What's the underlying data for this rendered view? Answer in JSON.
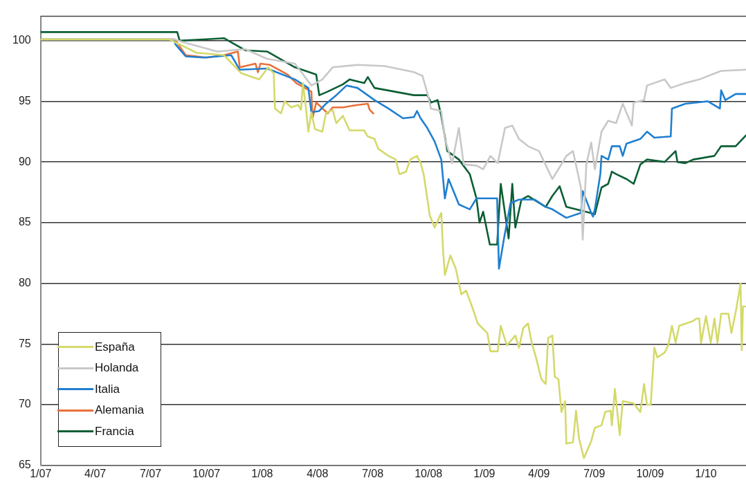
{
  "chart_data": {
    "type": "line",
    "marker": "none",
    "line_style": "solid",
    "grid": "y",
    "legend": "bottom left",
    "xlim": [
      "2007-01-01",
      "2010-03-08"
    ],
    "xticks": [
      {
        "value": "2007-01",
        "label": "1/07"
      },
      {
        "value": "2007-04",
        "label": "4/07"
      },
      {
        "value": "2007-07",
        "label": "7/07"
      },
      {
        "value": "2007-10",
        "label": "10/07"
      },
      {
        "value": "2008-01",
        "label": "1/08"
      },
      {
        "value": "2008-04",
        "label": "4/08"
      },
      {
        "value": "2008-07",
        "label": "7/08"
      },
      {
        "value": "2008-10",
        "label": "10/08"
      },
      {
        "value": "2009-01",
        "label": "1/09"
      },
      {
        "value": "2009-04",
        "label": "4/09"
      },
      {
        "value": "2009-07",
        "label": "7/09"
      },
      {
        "value": "2009-10",
        "label": "10/09"
      },
      {
        "value": "2010-01",
        "label": "1/10"
      }
    ],
    "ylim": [
      65,
      102
    ],
    "yticks": [
      65,
      70,
      75,
      80,
      85,
      90,
      95,
      100
    ],
    "series": [
      {
        "name": "España",
        "color": "#d4d96a",
        "x": [
          "2007-01-01",
          "2007-08-01",
          "2007-09-15",
          "2007-10-30",
          "2007-11-22",
          "2007-11-28",
          "2007-12-27",
          "2008-01-11",
          "2008-01-20",
          "2008-01-22",
          "2008-02-01",
          "2008-02-07",
          "2008-02-18",
          "2008-02-29",
          "2008-03-05",
          "2008-03-08",
          "2008-03-13",
          "2008-03-17",
          "2008-03-22",
          "2008-03-28",
          "2008-04-09",
          "2008-04-15",
          "2008-04-26",
          "2008-05-02",
          "2008-05-13",
          "2008-05-24",
          "2008-06-17",
          "2008-06-23",
          "2008-07-04",
          "2008-07-10",
          "2008-07-27",
          "2008-08-08",
          "2008-08-14",
          "2008-08-25",
          "2008-09-01",
          "2008-09-12",
          "2008-09-18",
          "2008-09-23",
          "2008-09-29",
          "2008-10-03",
          "2008-10-11",
          "2008-10-22",
          "2008-10-25",
          "2008-10-28",
          "2008-11-06",
          "2008-11-15",
          "2008-11-24",
          "2008-12-02",
          "2008-12-13",
          "2008-12-21",
          "2009-01-06",
          "2009-01-11",
          "2009-01-23",
          "2009-01-28",
          "2009-02-07",
          "2009-02-21",
          "2009-02-27",
          "2009-03-06",
          "2009-03-14",
          "2009-03-20",
          "2009-03-27",
          "2009-04-05",
          "2009-04-12",
          "2009-04-16",
          "2009-04-23",
          "2009-04-27",
          "2009-05-03",
          "2009-05-08",
          "2009-05-14",
          "2009-05-16",
          "2009-05-27",
          "2009-06-01",
          "2009-06-06",
          "2009-06-14",
          "2009-06-26",
          "2009-07-02",
          "2009-07-13",
          "2009-07-19",
          "2009-07-28",
          "2009-07-30",
          "2009-08-04",
          "2009-08-12",
          "2009-08-17",
          "2009-09-04",
          "2009-09-15",
          "2009-09-21",
          "2009-09-26",
          "2009-10-02",
          "2009-10-08",
          "2009-10-13",
          "2009-10-25",
          "2009-10-31",
          "2009-11-06",
          "2009-11-12",
          "2009-11-18",
          "2009-12-11",
          "2009-12-16",
          "2009-12-21",
          "2009-12-24",
          "2010-01-01",
          "2010-01-09",
          "2010-01-15",
          "2010-01-20",
          "2010-01-26",
          "2010-02-07",
          "2010-02-12",
          "2010-02-20",
          "2010-02-27",
          "2010-03-01",
          "2010-03-03",
          "2010-03-08"
        ],
        "values": [
          100.1,
          100.1,
          99.0,
          98.8,
          97.6,
          97.3,
          96.8,
          97.8,
          97.3,
          94.4,
          94.0,
          95.0,
          94.5,
          94.7,
          94.3,
          96.5,
          94.5,
          92.5,
          94.1,
          92.7,
          92.5,
          94.0,
          94.3,
          93.2,
          93.8,
          92.6,
          92.6,
          92.1,
          91.9,
          91.1,
          90.5,
          90.2,
          89.0,
          89.2,
          90.2,
          90.5,
          89.9,
          89.0,
          87.0,
          85.6,
          84.6,
          85.8,
          82.7,
          80.7,
          82.3,
          81.2,
          79.1,
          79.4,
          77.9,
          76.7,
          75.9,
          74.4,
          74.4,
          76.5,
          74.9,
          75.7,
          74.7,
          76.3,
          76.7,
          75.1,
          73.9,
          72.1,
          71.7,
          75.5,
          75.7,
          72.3,
          72.1,
          69.4,
          70.3,
          66.8,
          66.9,
          69.5,
          67.2,
          65.6,
          67.0,
          68.1,
          68.3,
          69.4,
          69.5,
          68.3,
          71.3,
          67.5,
          70.3,
          70.1,
          69.4,
          71.7,
          70.0,
          70.0,
          74.7,
          73.9,
          74.3,
          74.9,
          76.5,
          75.1,
          76.5,
          76.9,
          77.1,
          77.1,
          75.1,
          77.3,
          75.1,
          77.1,
          75.1,
          77.5,
          77.5,
          75.9,
          77.9,
          80.0,
          74.5,
          78.1,
          78.1
        ]
      },
      {
        "name": "Holanda",
        "color": "#c8c8c8",
        "x": [
          "2007-01-01",
          "2007-08-10",
          "2007-08-22",
          "2007-10-19",
          "2007-12-04",
          "2008-01-09",
          "2008-02-24",
          "2008-03-22",
          "2008-04-09",
          "2008-04-26",
          "2008-06-06",
          "2008-07-21",
          "2008-09-07",
          "2008-09-21",
          "2008-09-29",
          "2008-10-05",
          "2008-10-22",
          "2008-10-28",
          "2008-11-09",
          "2008-11-20",
          "2008-11-28",
          "2008-12-19",
          "2008-12-30",
          "2009-01-11",
          "2009-01-23",
          "2009-02-04",
          "2009-02-16",
          "2009-02-27",
          "2009-03-14",
          "2009-04-01",
          "2009-04-23",
          "2009-05-03",
          "2009-05-16",
          "2009-05-27",
          "2009-06-09",
          "2009-06-12",
          "2009-06-18",
          "2009-06-26",
          "2009-07-02",
          "2009-07-13",
          "2009-07-24",
          "2009-08-06",
          "2009-08-17",
          "2009-09-01",
          "2009-09-04",
          "2009-09-21",
          "2009-09-26",
          "2009-10-25",
          "2009-11-04",
          "2009-11-28",
          "2009-12-21",
          "2010-01-26",
          "2010-03-08"
        ],
        "values": [
          100.1,
          100.1,
          99.9,
          99.1,
          99.3,
          98.5,
          98.1,
          96.3,
          96.8,
          97.8,
          98.0,
          97.9,
          97.4,
          97.1,
          95.7,
          94.4,
          94.2,
          91.9,
          89.9,
          92.8,
          89.8,
          89.7,
          89.4,
          90.5,
          89.9,
          92.8,
          93.0,
          91.9,
          91.3,
          90.9,
          88.6,
          89.4,
          90.5,
          90.9,
          87.9,
          83.6,
          89.8,
          91.6,
          89.4,
          92.5,
          93.4,
          93.2,
          94.8,
          93.0,
          94.9,
          95.1,
          96.3,
          96.8,
          96.1,
          96.5,
          96.8,
          97.5,
          97.6
        ]
      },
      {
        "name": "Italia",
        "color": "#1f7fcf",
        "x": [
          "2007-01-01",
          "2007-08-09",
          "2007-08-11",
          "2007-08-28",
          "2007-09-27",
          "2007-11-11",
          "2007-11-25",
          "2008-01-09",
          "2008-02-24",
          "2008-03-17",
          "2008-03-22",
          "2008-04-04",
          "2008-04-15",
          "2008-05-02",
          "2008-05-19",
          "2008-06-06",
          "2008-07-04",
          "2008-07-27",
          "2008-08-20",
          "2008-09-07",
          "2008-09-12",
          "2008-09-18",
          "2008-09-29",
          "2008-10-11",
          "2008-10-22",
          "2008-10-28",
          "2008-11-03",
          "2008-11-20",
          "2008-12-08",
          "2008-12-19",
          "2009-01-22",
          "2009-01-25",
          "2009-02-02",
          "2009-02-13",
          "2009-02-27",
          "2009-03-25",
          "2009-04-12",
          "2009-04-23",
          "2009-05-16",
          "2009-06-09",
          "2009-06-12",
          "2009-06-26",
          "2009-06-29",
          "2009-07-02",
          "2009-07-11",
          "2009-07-13",
          "2009-07-24",
          "2009-07-30",
          "2009-08-12",
          "2009-08-17",
          "2009-08-23",
          "2009-09-15",
          "2009-09-26",
          "2009-10-08",
          "2009-11-04",
          "2009-11-06",
          "2009-11-28",
          "2010-01-04",
          "2010-01-24",
          "2010-01-26",
          "2010-02-02",
          "2010-02-19",
          "2010-03-08"
        ],
        "values": [
          100.1,
          100.1,
          99.7,
          98.7,
          98.6,
          98.8,
          97.6,
          97.7,
          96.8,
          96.1,
          94.1,
          94.2,
          94.8,
          95.5,
          96.3,
          96.1,
          95.1,
          94.4,
          93.6,
          93.7,
          94.2,
          93.6,
          92.8,
          91.7,
          90.2,
          87.0,
          88.6,
          86.5,
          86.1,
          87.0,
          87.0,
          81.2,
          83.6,
          86.6,
          86.9,
          86.9,
          86.3,
          86.1,
          85.4,
          85.8,
          87.6,
          85.8,
          85.5,
          86.1,
          89.0,
          90.5,
          90.2,
          91.3,
          91.3,
          90.5,
          91.5,
          91.9,
          92.5,
          92.0,
          92.1,
          94.4,
          94.8,
          95.0,
          94.4,
          95.9,
          95.1,
          95.6,
          95.6
        ]
      },
      {
        "name": "Alemania",
        "color": "#e8703a",
        "x": [
          "2007-01-01",
          "2007-08-10",
          "2007-08-28",
          "2007-10-02",
          "2007-10-30",
          "2007-11-22",
          "2007-11-25",
          "2007-12-21",
          "2007-12-25",
          "2007-12-29",
          "2008-01-14",
          "2008-02-12",
          "2008-02-26",
          "2008-03-22",
          "2008-03-24",
          "2008-03-30",
          "2008-04-18",
          "2008-04-26",
          "2008-05-13",
          "2008-06-06",
          "2008-06-23",
          "2008-06-26",
          "2008-07-02"
        ],
        "values": [
          100.1,
          100.1,
          98.8,
          98.6,
          98.8,
          99.1,
          97.8,
          98.1,
          97.4,
          98.1,
          98.0,
          97.2,
          96.5,
          95.8,
          93.6,
          94.9,
          94.0,
          94.5,
          94.5,
          94.7,
          94.8,
          94.3,
          94.0
        ]
      },
      {
        "name": "Francia",
        "color": "#0b5e34",
        "x": [
          "2007-01-01",
          "2007-08-14",
          "2007-08-18",
          "2007-09-26",
          "2007-10-30",
          "2007-12-04",
          "2008-01-09",
          "2008-02-24",
          "2008-03-30",
          "2008-04-04",
          "2008-04-18",
          "2008-05-13",
          "2008-05-24",
          "2008-06-17",
          "2008-06-23",
          "2008-07-04",
          "2008-09-07",
          "2008-09-29",
          "2008-10-05",
          "2008-10-16",
          "2008-10-22",
          "2008-11-01",
          "2008-11-20",
          "2008-12-08",
          "2008-12-19",
          "2008-12-24",
          "2008-12-30",
          "2009-01-10",
          "2009-01-22",
          "2009-01-28",
          "2009-02-10",
          "2009-02-16",
          "2009-02-21",
          "2009-03-03",
          "2009-03-14",
          "2009-04-12",
          "2009-04-23",
          "2009-05-05",
          "2009-05-16",
          "2009-06-09",
          "2009-07-02",
          "2009-07-13",
          "2009-07-24",
          "2009-07-30",
          "2009-08-06",
          "2009-08-23",
          "2009-09-04",
          "2009-09-15",
          "2009-09-26",
          "2009-10-25",
          "2009-11-12",
          "2009-11-15",
          "2009-11-28",
          "2009-12-11",
          "2010-01-15",
          "2010-01-26",
          "2010-02-19",
          "2010-03-08"
        ],
        "values": [
          100.7,
          100.7,
          100.0,
          100.1,
          100.2,
          99.2,
          99.1,
          97.8,
          97.2,
          95.5,
          95.8,
          96.4,
          96.8,
          96.5,
          97.0,
          96.1,
          95.5,
          95.5,
          94.9,
          95.1,
          93.8,
          90.9,
          90.2,
          89.0,
          87.0,
          85.0,
          85.9,
          83.2,
          83.2,
          88.2,
          83.7,
          88.2,
          84.6,
          86.9,
          87.2,
          86.3,
          87.2,
          88.0,
          86.3,
          86.0,
          85.7,
          87.9,
          88.2,
          89.2,
          89.0,
          88.6,
          88.2,
          89.8,
          90.2,
          90.0,
          90.9,
          90.0,
          89.9,
          90.2,
          90.5,
          91.3,
          91.3,
          92.2
        ]
      }
    ]
  }
}
